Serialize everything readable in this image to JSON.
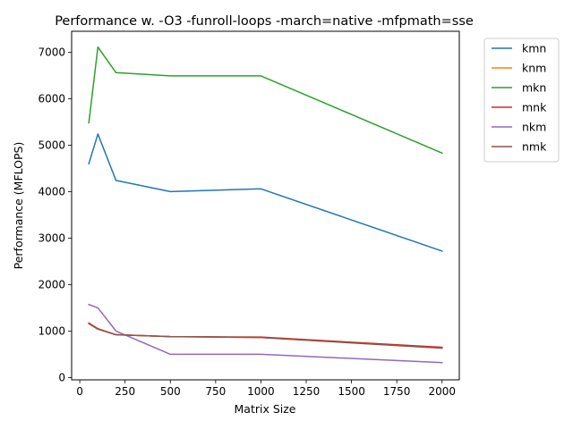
{
  "chart_data": {
    "type": "line",
    "title": "Performance w. -O3 -funroll-loops -march=native -mfpmath=sse",
    "xlabel": "Matrix Size",
    "ylabel": "Performance (MFLOPS)",
    "xlim": [
      -45,
      2095
    ],
    "ylim": [
      -50,
      7450
    ],
    "xticks": [
      0,
      250,
      500,
      750,
      1000,
      1250,
      1500,
      1750,
      2000
    ],
    "yticks": [
      0,
      1000,
      2000,
      3000,
      4000,
      5000,
      6000,
      7000
    ],
    "grid": false,
    "legend_position": "outside-top-right",
    "x": [
      50,
      100,
      200,
      500,
      1000,
      2000
    ],
    "series": [
      {
        "name": "kmn",
        "color": "#1f77b4",
        "values": [
          4600,
          5240,
          4240,
          4000,
          4060,
          2720
        ]
      },
      {
        "name": "knm",
        "color": "#ff7f0e",
        "values": [
          1170,
          1050,
          920,
          880,
          860,
          640
        ]
      },
      {
        "name": "mkn",
        "color": "#2ca02c",
        "values": [
          5480,
          7110,
          6560,
          6490,
          6490,
          4830
        ]
      },
      {
        "name": "mnk",
        "color": "#d62728",
        "values": [
          1170,
          1050,
          920,
          880,
          870,
          650
        ]
      },
      {
        "name": "nkm",
        "color": "#9467bd",
        "values": [
          1570,
          1500,
          1000,
          500,
          500,
          320
        ]
      },
      {
        "name": "nmk",
        "color": "#8c564b",
        "values": [
          1160,
          1040,
          920,
          880,
          860,
          630
        ]
      }
    ]
  }
}
